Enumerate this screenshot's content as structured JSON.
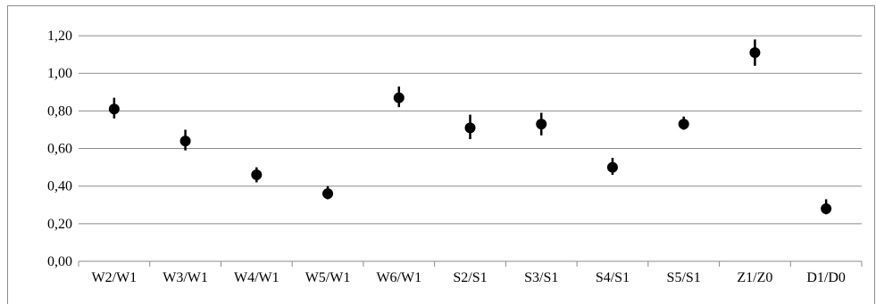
{
  "chart_data": {
    "type": "scatter",
    "title": "",
    "xlabel": "",
    "ylabel": "",
    "categories": [
      "W2/W1",
      "W3/W1",
      "W4/W1",
      "W5/W1",
      "W6/W1",
      "S2/S1",
      "S3/S1",
      "S4/S1",
      "S5/S1",
      "Z1/Z0",
      "D1/D0"
    ],
    "values": [
      0.81,
      0.64,
      0.46,
      0.36,
      0.87,
      0.71,
      0.73,
      0.5,
      0.73,
      1.11,
      0.28
    ],
    "error_low": [
      0.76,
      0.59,
      0.42,
      0.33,
      0.82,
      0.65,
      0.67,
      0.46,
      0.7,
      1.04,
      0.25
    ],
    "error_high": [
      0.87,
      0.7,
      0.5,
      0.4,
      0.93,
      0.78,
      0.79,
      0.55,
      0.77,
      1.18,
      0.33
    ],
    "ylim": [
      0,
      1.3
    ],
    "yticks": [
      0,
      0.2,
      0.4,
      0.6,
      0.8,
      1.0,
      1.2
    ],
    "ytick_labels": [
      "0,00",
      "0,20",
      "0,40",
      "0,60",
      "0,80",
      "1,00",
      "1,20"
    ],
    "grid": true,
    "legend": "none",
    "colors": {
      "marker": "#000000",
      "grid": "#8c8c8c",
      "axis": "#8c8c8c"
    }
  }
}
